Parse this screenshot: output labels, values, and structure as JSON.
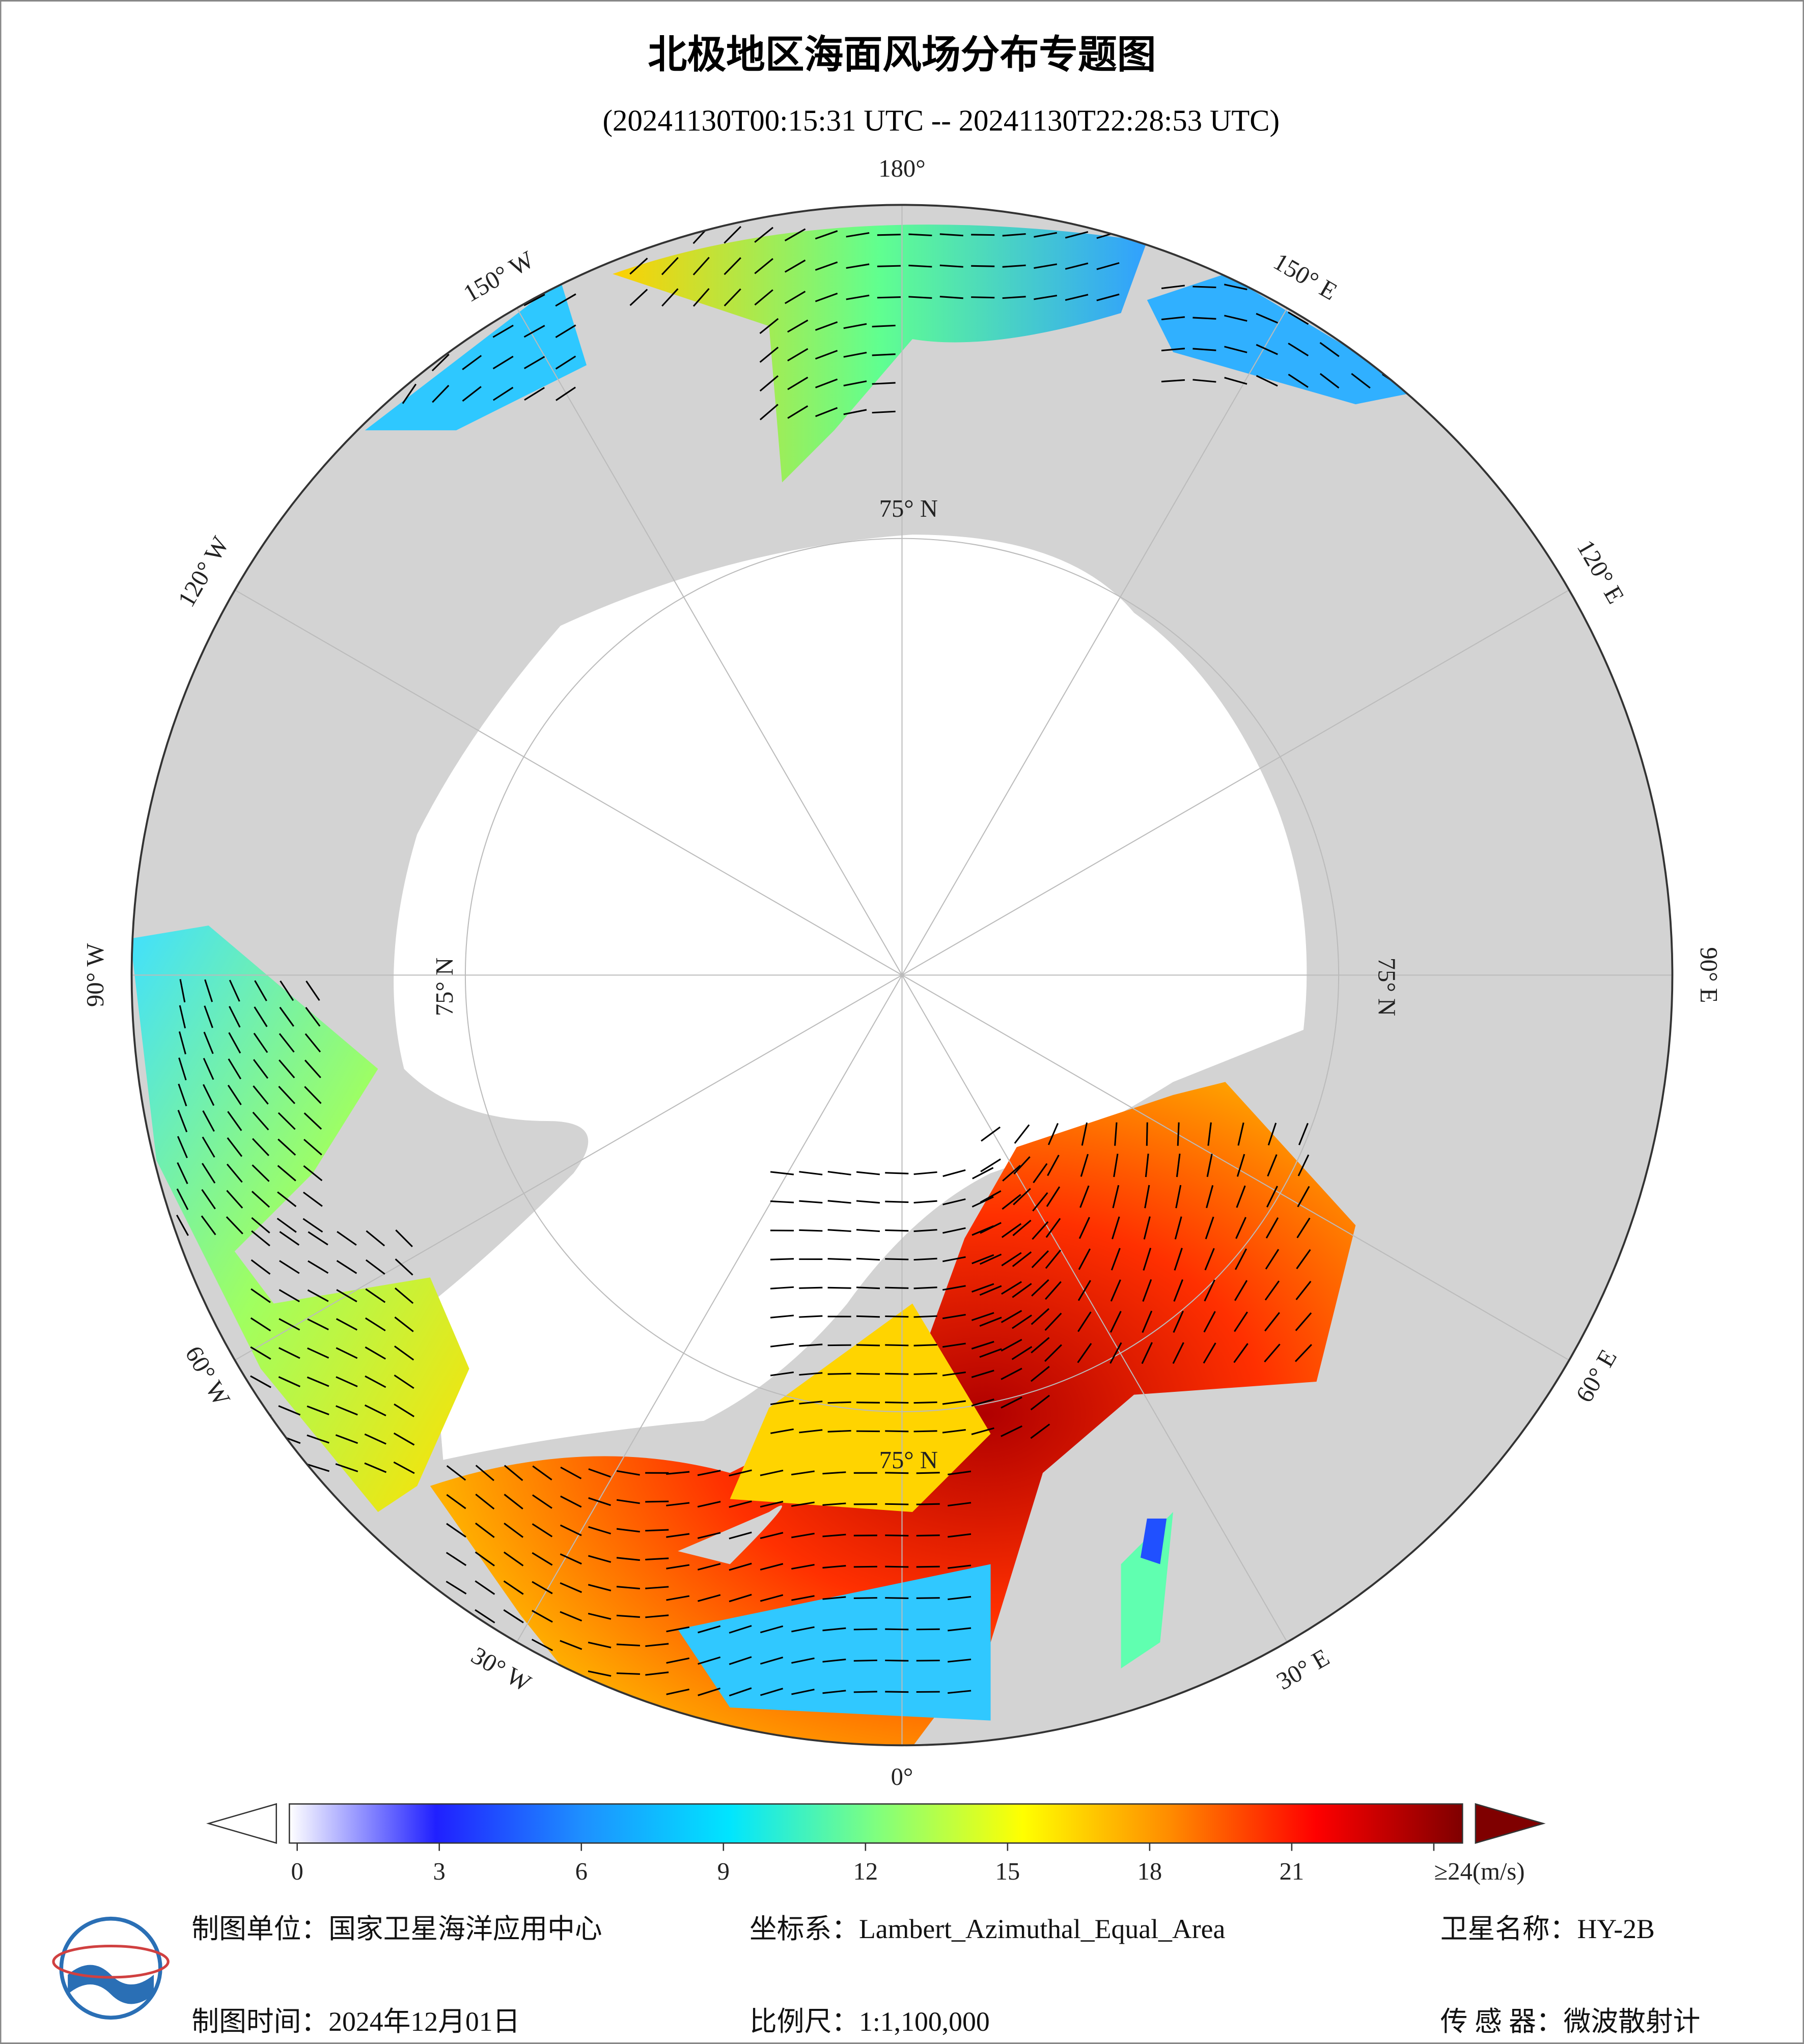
{
  "title": "北极地区海面风场分布专题图",
  "subtitle": "(20241130T00:15:31 UTC -- 20241130T22:28:53 UTC)",
  "map": {
    "projection_labels": [
      {
        "lon": 180,
        "label": "180°"
      },
      {
        "lon": 150,
        "label": "150° E"
      },
      {
        "lon": 120,
        "label": "120° E"
      },
      {
        "lon": 90,
        "label": "90° E"
      },
      {
        "lon": 60,
        "label": "60° E"
      },
      {
        "lon": 30,
        "label": "30° E"
      },
      {
        "lon": 0,
        "label": "0°"
      },
      {
        "lon": -30,
        "label": "30° W"
      },
      {
        "lon": -60,
        "label": "60° W"
      },
      {
        "lon": -90,
        "label": "90° W"
      },
      {
        "lon": -120,
        "label": "120° W"
      },
      {
        "lon": -150,
        "label": "150° W"
      }
    ],
    "lat_labels": [
      "75° N",
      "75° N",
      "75° N",
      "75° N"
    ]
  },
  "colorbar": {
    "lim": [
      0,
      24
    ],
    "ticks": [
      0,
      3,
      6,
      9,
      12,
      15,
      18,
      21,
      {
        "value": 24,
        "label": "≥24(m/s)"
      }
    ],
    "colors": [
      "#ffffff",
      "#2020ff",
      "#1e90ff",
      "#00e5ff",
      "#7fff7f",
      "#ffff00",
      "#ff8c00",
      "#ff0000",
      "#7f0000"
    ]
  },
  "footer": {
    "unit": "制图单位：国家卫星海洋应用中心",
    "crs": "坐标系：Lambert_Azimuthal_Equal_Area",
    "satellite": "卫星名称：HY-2B",
    "date": "制图时间：2024年12月01日",
    "scale": "比例尺：1:1,100,000",
    "sensor": "传 感 器：微波散射计"
  }
}
